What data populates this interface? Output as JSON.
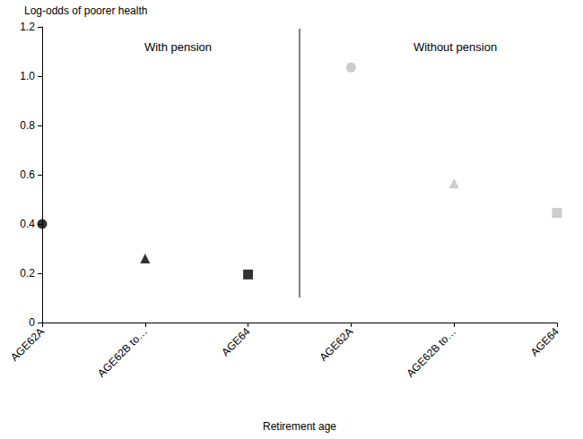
{
  "chart_data": {
    "type": "scatter",
    "y_label": "Log-odds of poorer health",
    "x_label": "Retirement age",
    "annotations": [
      "With pension",
      "Without pension"
    ],
    "categories": [
      "AGE62A",
      "AGE62B to…",
      "AGE64",
      "AGE62A",
      "AGE62B to…",
      "AGE64"
    ],
    "series": [
      {
        "name": "AGE62A",
        "marker": "circle",
        "values": [
          0.4,
          null,
          null,
          1.035,
          null,
          null
        ],
        "colors": [
          "#000000",
          "#000000",
          "#000000",
          "#bfbfbf",
          "#bfbfbf",
          "#bfbfbf"
        ]
      },
      {
        "name": "AGE62B to…",
        "marker": "triangle",
        "values": [
          null,
          0.26,
          null,
          null,
          0.565,
          null
        ],
        "colors": [
          "#000000",
          "#000000",
          "#000000",
          "#bfbfbf",
          "#bfbfbf",
          "#bfbfbf"
        ]
      },
      {
        "name": "AGE64",
        "marker": "square",
        "values": [
          null,
          null,
          0.195,
          null,
          null,
          0.445
        ],
        "colors": [
          "#000000",
          "#000000",
          "#000000",
          "#bfbfbf",
          "#bfbfbf",
          "#bfbfbf"
        ]
      }
    ],
    "ylim": [
      0,
      1.2
    ],
    "yticks": [
      0,
      0.2,
      0.4,
      0.6,
      0.8,
      {
        "value": 1,
        "label": "1.0"
      },
      1.2
    ],
    "grid": false
  }
}
